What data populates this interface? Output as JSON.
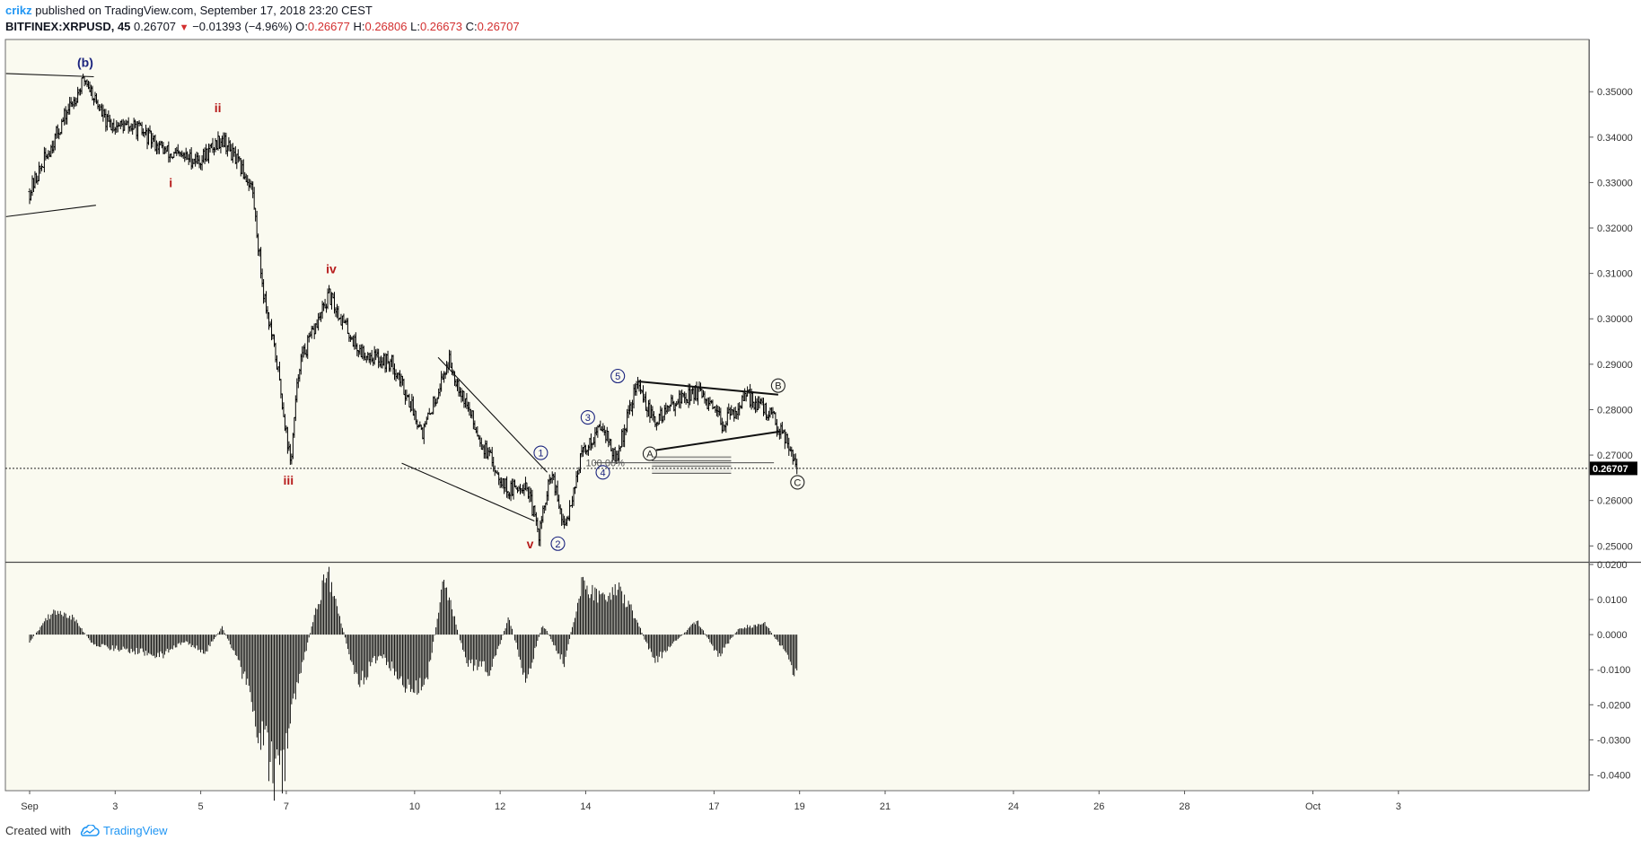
{
  "header": {
    "user": "crikz",
    "published": " published on TradingView.com, September 17, 2018 23:20 CEST",
    "symbol": "BITFINEX:XRPUSD, 45",
    "last": "0.26707",
    "change": "−0.01393 (−4.96%)",
    "o_label": "O:",
    "o": "0.26677",
    "h_label": "H:",
    "h": "0.26806",
    "l_label": "L:",
    "l": "0.26673",
    "c_label": "C:",
    "c": "0.26707"
  },
  "footer": {
    "created_with": "Created with",
    "brand": "TradingView"
  },
  "colors": {
    "background": "#fafaf0",
    "candle": "#000000",
    "wave_red": "#b71c1c",
    "wave_blue": "#1a237e",
    "price_tag": "#000000"
  },
  "chart_data": [
    {
      "type": "ohlc",
      "instrument": "BITFINEX:XRPUSD",
      "timeframe": "45",
      "ylim": [
        0.2465,
        0.3615
      ],
      "y_ticks": [
        "0.35000",
        "0.34000",
        "0.33000",
        "0.32000",
        "0.31000",
        "0.30000",
        "0.29000",
        "0.28000",
        "0.27000",
        "0.26000",
        "0.25000"
      ],
      "x_ticks": [
        "Sep",
        "3",
        "5",
        "7",
        "10",
        "12",
        "14",
        "17",
        "19",
        "21",
        "24",
        "26",
        "28",
        "Oct",
        "3"
      ],
      "current_price": 0.26707,
      "current_price_label": "0.26707",
      "approx_path": [
        {
          "x": 0.0,
          "y": 0.328
        },
        {
          "x": 0.9,
          "y": 0.346
        },
        {
          "x": 1.3,
          "y": 0.353
        },
        {
          "x": 1.8,
          "y": 0.343
        },
        {
          "x": 2.5,
          "y": 0.342
        },
        {
          "x": 3.3,
          "y": 0.336
        },
        {
          "x": 4.0,
          "y": 0.335
        },
        {
          "x": 4.5,
          "y": 0.34
        },
        {
          "x": 5.2,
          "y": 0.329
        },
        {
          "x": 5.45,
          "y": 0.307
        },
        {
          "x": 5.8,
          "y": 0.289
        },
        {
          "x": 6.1,
          "y": 0.268
        },
        {
          "x": 6.3,
          "y": 0.29
        },
        {
          "x": 7.0,
          "y": 0.305
        },
        {
          "x": 7.7,
          "y": 0.293
        },
        {
          "x": 8.5,
          "y": 0.29
        },
        {
          "x": 9.2,
          "y": 0.275
        },
        {
          "x": 9.8,
          "y": 0.291
        },
        {
          "x": 10.6,
          "y": 0.272
        },
        {
          "x": 11.2,
          "y": 0.262
        },
        {
          "x": 11.6,
          "y": 0.264
        },
        {
          "x": 11.9,
          "y": 0.2525
        },
        {
          "x": 12.2,
          "y": 0.266
        },
        {
          "x": 12.5,
          "y": 0.2535
        },
        {
          "x": 12.9,
          "y": 0.27
        },
        {
          "x": 13.4,
          "y": 0.277
        },
        {
          "x": 13.7,
          "y": 0.2685
        },
        {
          "x": 14.2,
          "y": 0.286
        },
        {
          "x": 14.6,
          "y": 0.277
        },
        {
          "x": 15.1,
          "y": 0.282
        },
        {
          "x": 15.6,
          "y": 0.284
        },
        {
          "x": 16.2,
          "y": 0.277
        },
        {
          "x": 16.8,
          "y": 0.283
        },
        {
          "x": 17.3,
          "y": 0.279
        },
        {
          "x": 17.7,
          "y": 0.2738
        },
        {
          "x": 17.95,
          "y": 0.2675
        }
      ],
      "wave_labels": [
        {
          "text": "(b)",
          "x": 1.3,
          "y": 0.3565,
          "color": "blue"
        },
        {
          "text": "i",
          "x": 3.3,
          "y": 0.33,
          "color": "red"
        },
        {
          "text": "ii",
          "x": 4.4,
          "y": 0.3465,
          "color": "red"
        },
        {
          "text": "iii",
          "x": 6.05,
          "y": 0.2645,
          "color": "red"
        },
        {
          "text": "iv",
          "x": 7.05,
          "y": 0.311,
          "color": "red"
        },
        {
          "text": "v",
          "x": 11.7,
          "y": 0.2505,
          "color": "red"
        },
        {
          "text": "1",
          "x": 11.95,
          "y": 0.2705,
          "color": "blue",
          "circled": true
        },
        {
          "text": "2",
          "x": 12.35,
          "y": 0.2505,
          "color": "blue",
          "circled": true
        },
        {
          "text": "3",
          "x": 13.05,
          "y": 0.2783,
          "color": "blue",
          "circled": true
        },
        {
          "text": "4",
          "x": 13.4,
          "y": 0.2662,
          "color": "blue",
          "circled": true
        },
        {
          "text": "5",
          "x": 13.75,
          "y": 0.2874,
          "color": "blue",
          "circled": true
        },
        {
          "text": "A",
          "x": 14.5,
          "y": 0.2703,
          "color": "black",
          "circled": true
        },
        {
          "text": "B",
          "x": 17.5,
          "y": 0.2853,
          "color": "black",
          "circled": true
        },
        {
          "text": "C",
          "x": 17.95,
          "y": 0.264,
          "color": "black",
          "circled": true
        }
      ],
      "fib_label": "100.00%",
      "trendlines": [
        {
          "x1": -0.55,
          "y1": 0.354,
          "x2": 1.5,
          "y2": 0.3533
        },
        {
          "x1": -0.55,
          "y1": 0.3225,
          "x2": 1.55,
          "y2": 0.325
        },
        {
          "x1": 9.55,
          "y1": 0.2915,
          "x2": 12.1,
          "y2": 0.2662
        },
        {
          "x1": 8.7,
          "y1": 0.2682,
          "x2": 11.8,
          "y2": 0.2555
        },
        {
          "x1": 14.25,
          "y1": 0.2862,
          "x2": 17.5,
          "y2": 0.2833
        },
        {
          "x1": 14.65,
          "y1": 0.2711,
          "x2": 17.55,
          "y2": 0.2752
        }
      ]
    },
    {
      "type": "bar",
      "role": "oscillator",
      "ylim": [
        -0.0445,
        0.0205
      ],
      "y_ticks": [
        "0.0200",
        "0.0100",
        "0.0000",
        "-0.0100",
        "-0.0200",
        "-0.0300",
        "-0.0400"
      ],
      "approx_path": [
        {
          "x": 0.0,
          "y": -0.002
        },
        {
          "x": 0.5,
          "y": 0.006
        },
        {
          "x": 1.0,
          "y": 0.005
        },
        {
          "x": 1.5,
          "y": -0.003
        },
        {
          "x": 2.0,
          "y": -0.004
        },
        {
          "x": 2.6,
          "y": -0.005
        },
        {
          "x": 3.1,
          "y": -0.006
        },
        {
          "x": 3.6,
          "y": -0.002
        },
        {
          "x": 4.1,
          "y": -0.005
        },
        {
          "x": 4.5,
          "y": 0.002
        },
        {
          "x": 4.9,
          "y": -0.008
        },
        {
          "x": 5.5,
          "y": -0.032
        },
        {
          "x": 5.85,
          "y": -0.043
        },
        {
          "x": 6.3,
          "y": -0.012
        },
        {
          "x": 6.95,
          "y": 0.019
        },
        {
          "x": 7.4,
          "y": -0.002
        },
        {
          "x": 7.7,
          "y": -0.014
        },
        {
          "x": 8.2,
          "y": -0.005
        },
        {
          "x": 8.9,
          "y": -0.016
        },
        {
          "x": 9.3,
          "y": -0.012
        },
        {
          "x": 9.7,
          "y": 0.016
        },
        {
          "x": 10.2,
          "y": -0.008
        },
        {
          "x": 10.8,
          "y": -0.01
        },
        {
          "x": 11.2,
          "y": 0.005
        },
        {
          "x": 11.6,
          "y": -0.013
        },
        {
          "x": 12.0,
          "y": 0.003
        },
        {
          "x": 12.5,
          "y": -0.008
        },
        {
          "x": 12.9,
          "y": 0.014
        },
        {
          "x": 13.4,
          "y": 0.01
        },
        {
          "x": 13.8,
          "y": 0.013
        },
        {
          "x": 14.2,
          "y": 0.004
        },
        {
          "x": 14.6,
          "y": -0.008
        },
        {
          "x": 15.1,
          "y": -0.002
        },
        {
          "x": 15.6,
          "y": 0.004
        },
        {
          "x": 16.1,
          "y": -0.006
        },
        {
          "x": 16.6,
          "y": 0.002
        },
        {
          "x": 17.2,
          "y": 0.003
        },
        {
          "x": 17.6,
          "y": -0.004
        },
        {
          "x": 17.95,
          "y": -0.013
        }
      ]
    }
  ]
}
